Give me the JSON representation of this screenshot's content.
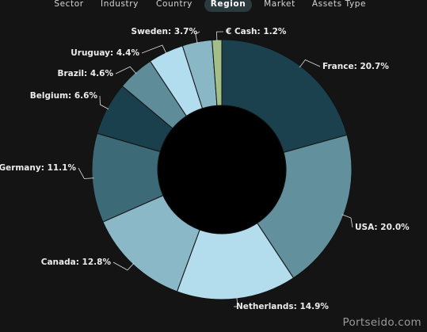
{
  "tabs": [
    {
      "label": "Sector",
      "active": false
    },
    {
      "label": "Industry",
      "active": false
    },
    {
      "label": "Country",
      "active": false
    },
    {
      "label": "Region",
      "active": true
    },
    {
      "label": "Market",
      "active": false
    },
    {
      "label": "Assets Type",
      "active": false
    }
  ],
  "chart_data": {
    "type": "pie",
    "donut": true,
    "slices": [
      {
        "label": "France",
        "value": 20.7,
        "display": "France: 20.7%",
        "color": "#1c414e"
      },
      {
        "label": "USA",
        "value": 20.0,
        "display": "USA: 20.0%",
        "color": "#62909c"
      },
      {
        "label": "Netherlands",
        "value": 14.9,
        "display": "Netherlands: 14.9%",
        "color": "#b3dded"
      },
      {
        "label": "Canada",
        "value": 12.8,
        "display": "Canada: 12.8%",
        "color": "#8ab8c6"
      },
      {
        "label": "Germany",
        "value": 11.1,
        "display": "Germany: 11.1%",
        "color": "#3c6a77"
      },
      {
        "label": "Belgium",
        "value": 6.6,
        "display": "Belgium: 6.6%",
        "color": "#19404c"
      },
      {
        "label": "Brazil",
        "value": 4.6,
        "display": "Brazil: 4.6%",
        "color": "#5e8d99"
      },
      {
        "label": "Uruguay",
        "value": 4.4,
        "display": "Uruguay: 4.4%",
        "color": "#b2ddee"
      },
      {
        "label": "Sweden",
        "value": 3.7,
        "display": "Sweden: 3.7%",
        "color": "#8ab7c6"
      },
      {
        "label": "€ Cash",
        "value": 1.2,
        "display": "€ Cash: 1.2%",
        "color": "#a3bf88"
      }
    ],
    "background": "#141414",
    "hole_color": "#000000",
    "label_color": "#ececec",
    "leader_color": "#e0e0e0"
  },
  "watermark": "Portseido.com"
}
